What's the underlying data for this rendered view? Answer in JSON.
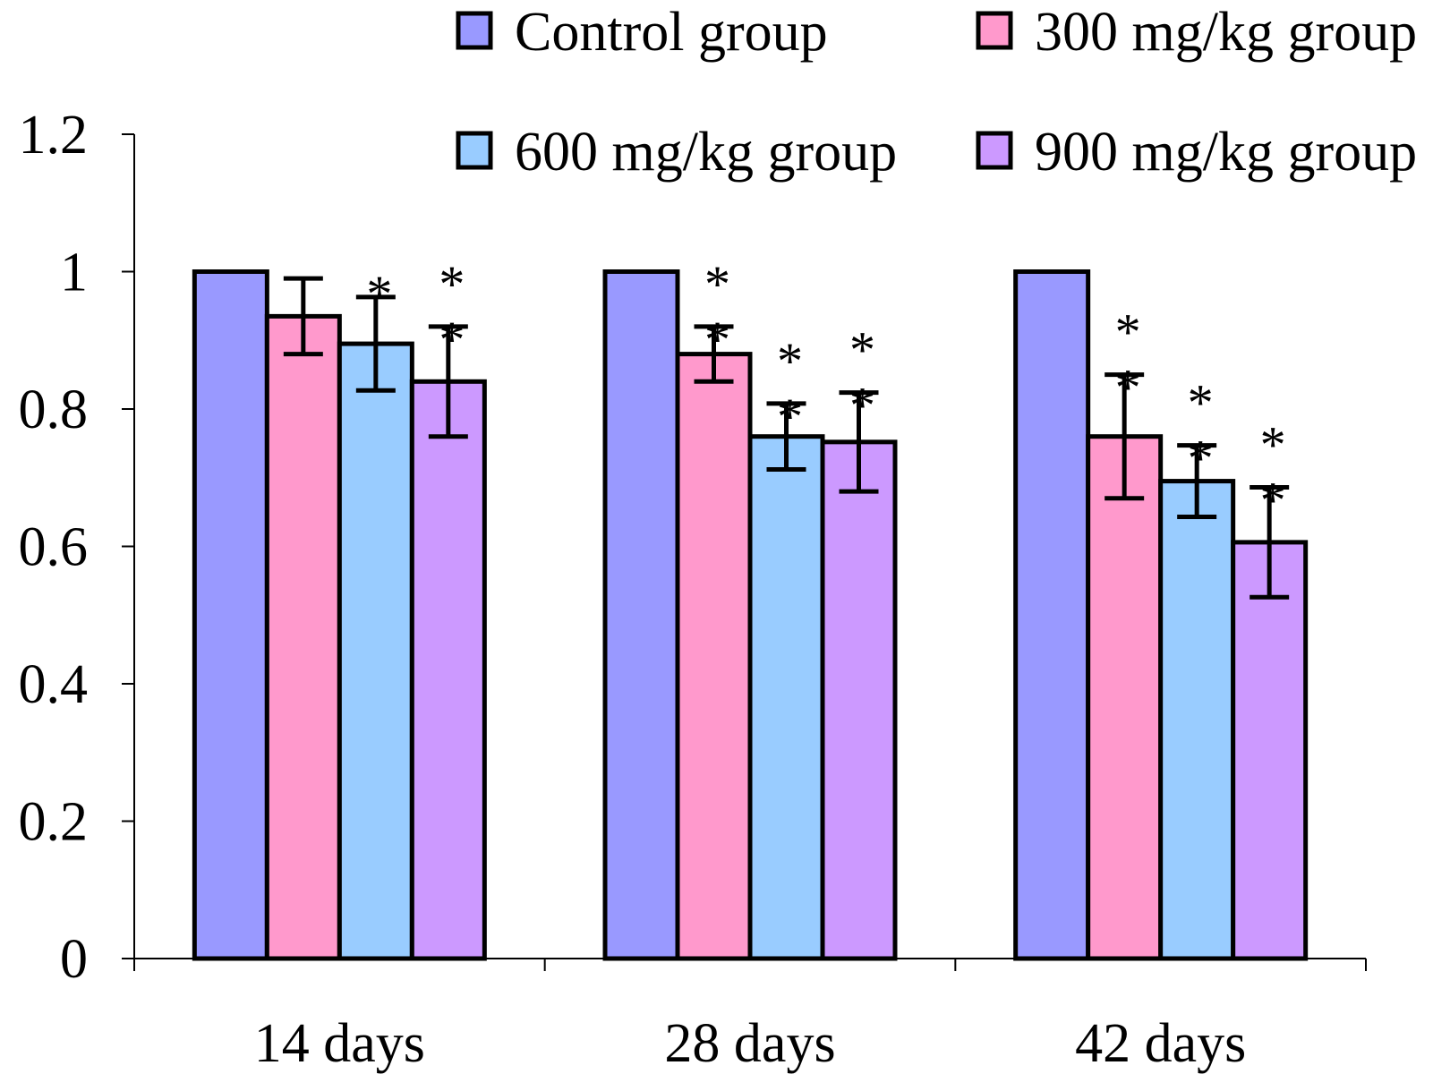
{
  "chart_data": {
    "type": "bar",
    "title": "",
    "xlabel": "",
    "ylabel": "",
    "ylim": [
      0,
      1.2
    ],
    "yticks": [
      0,
      0.2,
      0.4,
      0.6,
      0.8,
      1,
      1.2
    ],
    "ytick_labels": [
      "0",
      "0.2",
      "0.4",
      "0.6",
      "0.8",
      "1",
      "1.2"
    ],
    "categories": [
      "14 days",
      "28 days",
      "42 days"
    ],
    "legend_position": "top-right",
    "series": [
      {
        "name": "Control group",
        "color": "#9999ff",
        "values": [
          1.0,
          1.0,
          1.0
        ],
        "errors": [
          0,
          0,
          0
        ],
        "significance": [
          "",
          "",
          ""
        ]
      },
      {
        "name": "300 mg/kg group",
        "color": "#ff99cc",
        "values": [
          0.935,
          0.88,
          0.76
        ],
        "errors": [
          0.055,
          0.04,
          0.09
        ],
        "significance": [
          "",
          "**",
          "**"
        ]
      },
      {
        "name": "600 mg/kg group",
        "color": "#99ccff",
        "values": [
          0.895,
          0.76,
          0.695
        ],
        "errors": [
          0.068,
          0.048,
          0.052
        ],
        "significance": [
          "*",
          "**",
          "**"
        ]
      },
      {
        "name": "900 mg/kg group",
        "color": "#cc99ff",
        "values": [
          0.84,
          0.752,
          0.606
        ],
        "errors": [
          0.08,
          0.072,
          0.08
        ],
        "significance": [
          "**",
          "**",
          "**"
        ]
      }
    ]
  }
}
